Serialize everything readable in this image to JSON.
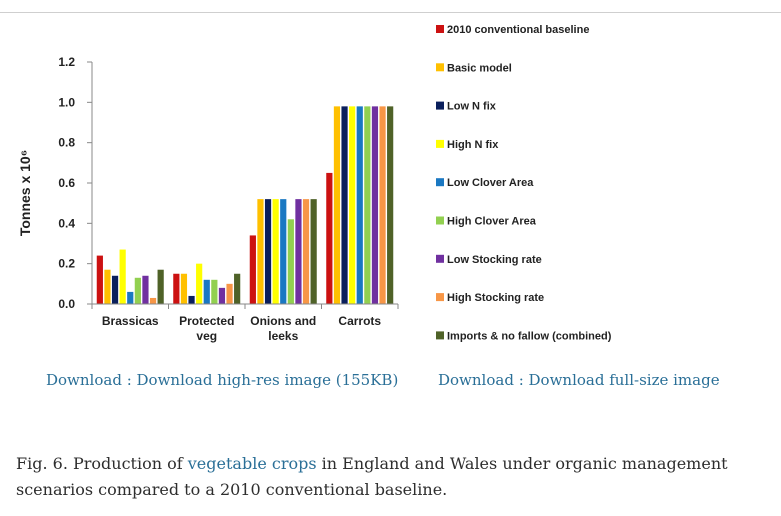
{
  "figure": {
    "download_hires": "Download : Download high-res image (155KB)",
    "download_full": "Download : Download full-size image",
    "caption_label": "Fig. 6.",
    "caption_pre": " Production of ",
    "caption_link": "vegetable crops",
    "caption_post": " in England and Wales under organic management scenarios compared to a 2010 conventional baseline."
  },
  "chart_data": {
    "type": "bar",
    "title": "",
    "xlabel": "",
    "ylabel": "Tonnes x 10⁶",
    "ylim": [
      0,
      1.2
    ],
    "yticks": [
      "0.0",
      "0.2",
      "0.4",
      "0.6",
      "0.8",
      "1.0",
      "1.2"
    ],
    "grid": false,
    "legend_position": "right",
    "categories": [
      "Brassicas",
      "Protected veg",
      "Onions and leeks",
      "Carrots"
    ],
    "category_lines": [
      [
        "Brassicas"
      ],
      [
        "Protected",
        "veg"
      ],
      [
        "Onions and",
        "leeks"
      ],
      [
        "Carrots"
      ]
    ],
    "series": [
      {
        "name": "2010 conventional baseline",
        "color": "#cc1111",
        "values": [
          0.24,
          0.15,
          0.34,
          0.65
        ]
      },
      {
        "name": "Basic model",
        "color": "#ffc000",
        "values": [
          0.17,
          0.15,
          0.52,
          0.98
        ]
      },
      {
        "name": "Low N fix",
        "color": "#0a1f5c",
        "values": [
          0.14,
          0.04,
          0.52,
          0.98
        ]
      },
      {
        "name": "High N fix",
        "color": "#ffff00",
        "values": [
          0.27,
          0.2,
          0.52,
          0.98
        ]
      },
      {
        "name": "Low Clover Area",
        "color": "#1a78c2",
        "values": [
          0.06,
          0.12,
          0.52,
          0.98
        ]
      },
      {
        "name": "High Clover Area",
        "color": "#92d050",
        "values": [
          0.13,
          0.12,
          0.42,
          0.98
        ]
      },
      {
        "name": "Low Stocking rate",
        "color": "#7030a0",
        "values": [
          0.14,
          0.08,
          0.52,
          0.98
        ]
      },
      {
        "name": "High Stocking rate",
        "color": "#f79646",
        "values": [
          0.03,
          0.1,
          0.52,
          0.98
        ]
      },
      {
        "name": "Imports & no fallow (combined)",
        "color": "#4f6228",
        "values": [
          0.17,
          0.15,
          0.52,
          0.98
        ]
      }
    ]
  }
}
